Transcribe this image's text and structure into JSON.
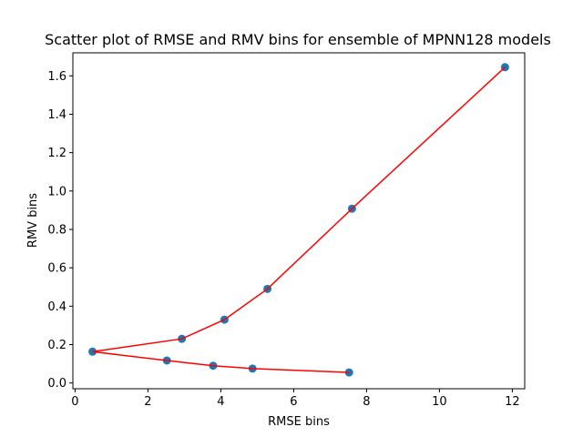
{
  "chart_data": {
    "type": "scatter",
    "title": "Scatter plot of RMSE and RMV bins for ensemble of MPNN128 models",
    "xlabel": "RMSE bins",
    "ylabel": "RMV bins",
    "xlim": [
      -0.06,
      12.34
    ],
    "ylim": [
      -0.03,
      1.72
    ],
    "xticks": [
      0,
      2,
      4,
      6,
      8,
      10,
      12
    ],
    "yticks": [
      0.0,
      0.2,
      0.4,
      0.6,
      0.8,
      1.0,
      1.2,
      1.4,
      1.6
    ],
    "xtick_labels": [
      "0",
      "2",
      "4",
      "6",
      "8",
      "10",
      "12"
    ],
    "ytick_labels": [
      "0.0",
      "0.2",
      "0.4",
      "0.6",
      "0.8",
      "1.0",
      "1.2",
      "1.4",
      "1.6"
    ],
    "grid": false,
    "series": [
      {
        "style": "points",
        "color": "#1f77b4",
        "x": [
          0.48,
          2.52,
          2.93,
          3.79,
          4.1,
          4.87,
          5.28,
          7.52,
          7.6,
          11.8
        ],
        "y": [
          0.163,
          0.117,
          0.23,
          0.09,
          0.33,
          0.075,
          0.49,
          0.055,
          0.908,
          1.645
        ]
      },
      {
        "style": "line",
        "color": "#ff0000",
        "x": [
          7.52,
          4.87,
          3.79,
          2.52,
          0.48,
          2.93,
          4.1,
          5.28,
          7.6,
          11.8
        ],
        "y": [
          0.055,
          0.075,
          0.09,
          0.117,
          0.163,
          0.23,
          0.33,
          0.49,
          0.908,
          1.645
        ]
      }
    ]
  }
}
